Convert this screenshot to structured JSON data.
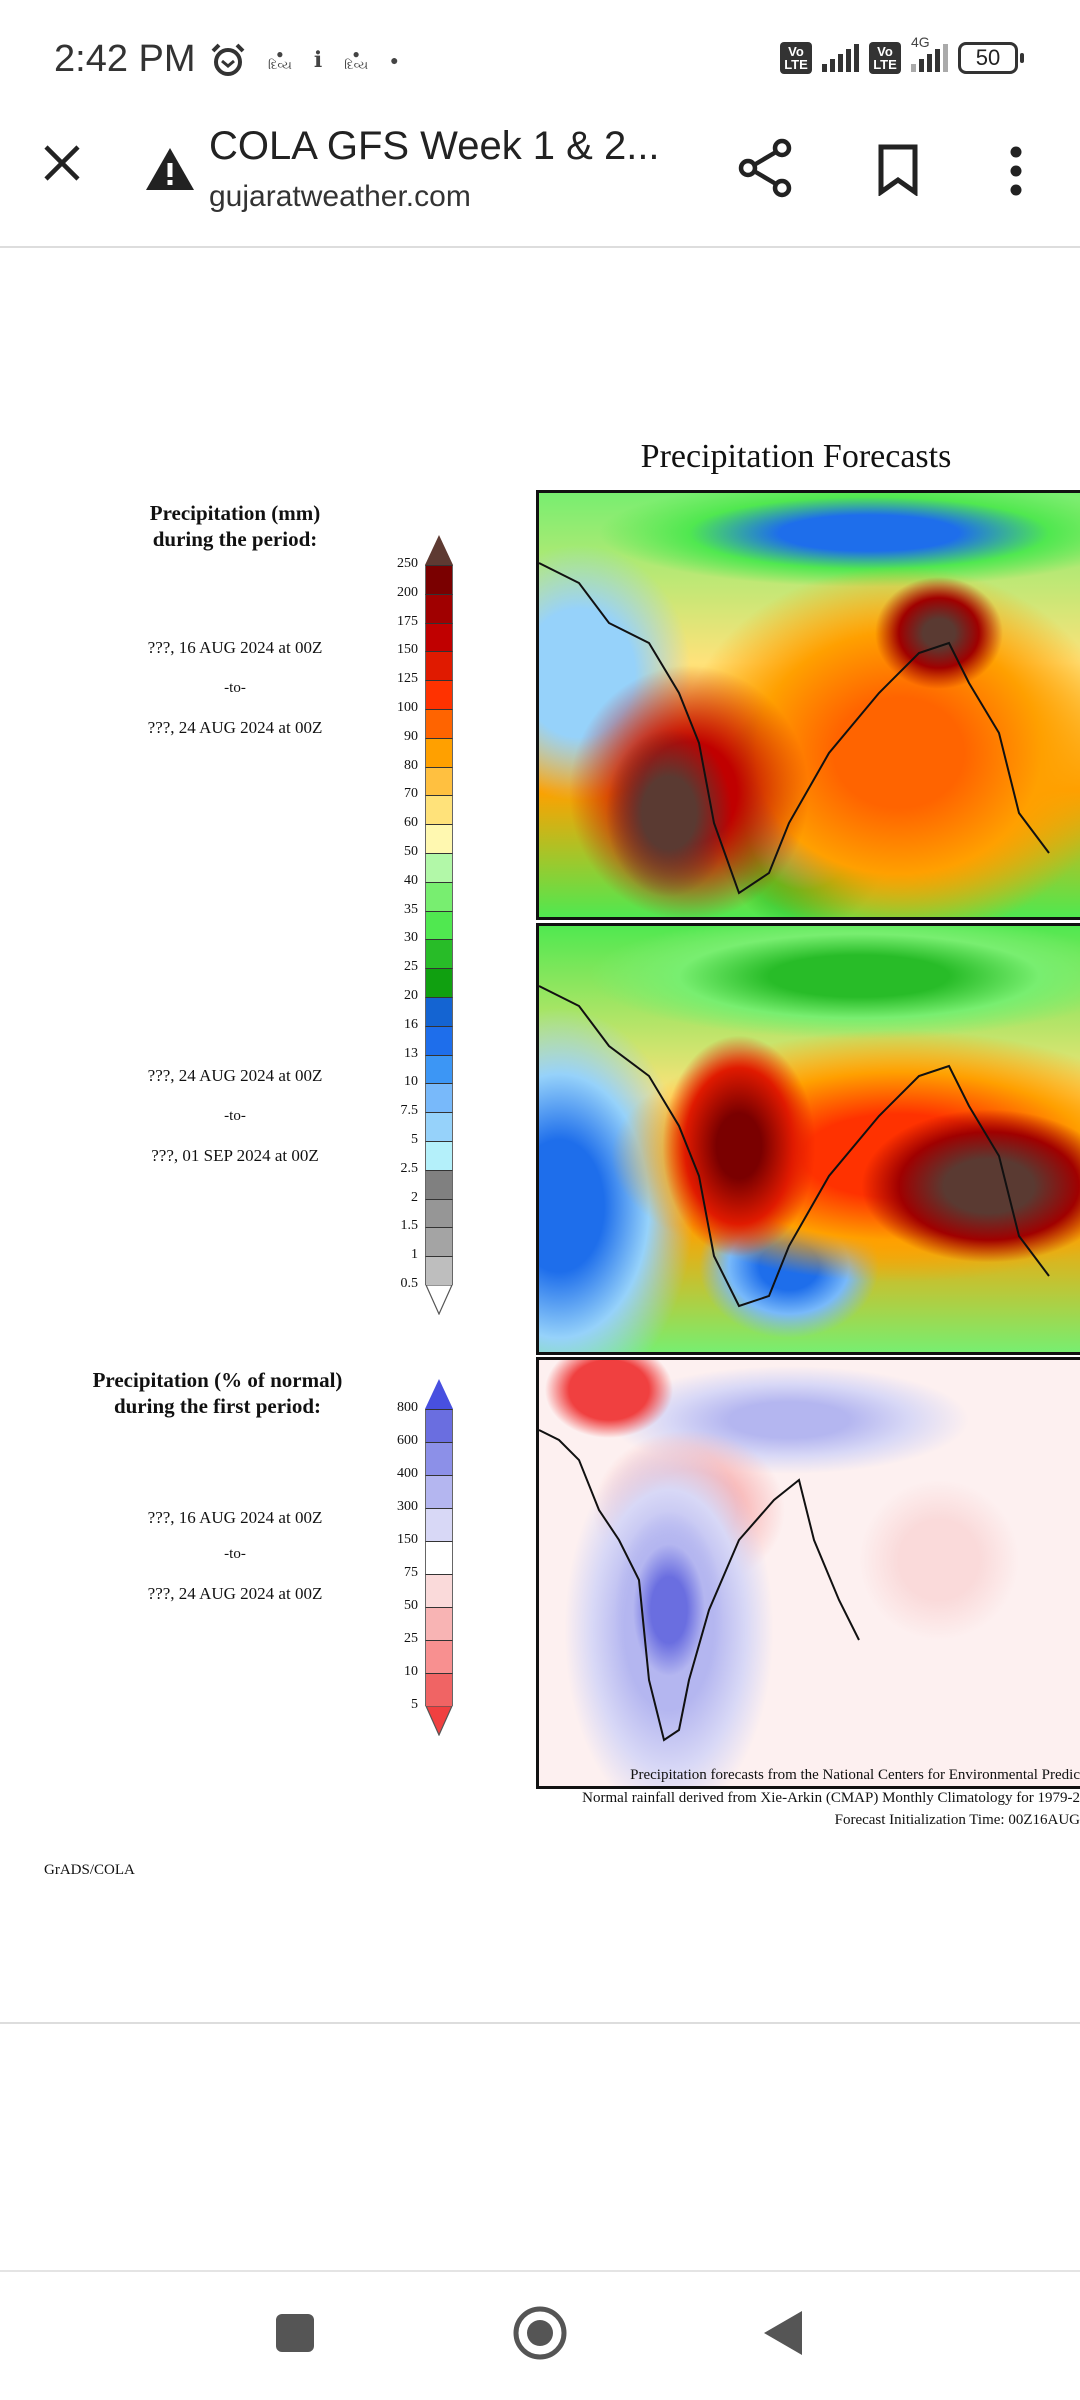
{
  "status_bar": {
    "time": "2:42 PM",
    "network_label": "4G",
    "volte_label": "Vo LTE",
    "battery": "50",
    "icons": [
      "alarm-icon",
      "divya-bhaskar-icon",
      "notification-icon",
      "divya-bhaskar-icon",
      "dot-icon"
    ]
  },
  "toolbar": {
    "title": "COLA GFS Week 1 & 2...",
    "url": "gujaratweather.com",
    "icons": [
      "close-icon",
      "warning-icon",
      "share-icon",
      "bookmark-icon",
      "more-vert-icon"
    ]
  },
  "figure": {
    "title": "Precipitation Forecasts",
    "legend1": {
      "title_line1": "Precipitation (mm)",
      "title_line2": "during the period:",
      "levels": [
        "250",
        "200",
        "175",
        "150",
        "125",
        "100",
        "90",
        "80",
        "70",
        "60",
        "50",
        "40",
        "35",
        "30",
        "25",
        "20",
        "16",
        "13",
        "10",
        "7.5",
        "5",
        "2.5",
        "2",
        "1.5",
        "1",
        "0.5"
      ],
      "colors": [
        "#7a0000",
        "#a00000",
        "#c00000",
        "#e01a00",
        "#ff3200",
        "#ff6400",
        "#ffa000",
        "#ffc040",
        "#ffe27a",
        "#fff8b0",
        "#b2f8a8",
        "#78ee70",
        "#50e850",
        "#28bc28",
        "#10a010",
        "#1464d2",
        "#1e6eeb",
        "#3c96f5",
        "#78b9fa",
        "#96d2fa",
        "#b4f0fa",
        "#808080",
        "#969696",
        "#a4a4a4",
        "#bebebe"
      ],
      "top_arrow_color": "#5e3a32",
      "bottom_arrow_color": "#ffffff"
    },
    "period1": {
      "from": "???, 16 AUG 2024 at 00Z",
      "to_label": "-to-",
      "to": "???, 24 AUG 2024 at 00Z"
    },
    "period2": {
      "from": "???, 24 AUG 2024 at 00Z",
      "to_label": "-to-",
      "to": "???, 01 SEP 2024 at 00Z"
    },
    "legend2": {
      "title_line1": "Precipitation (% of normal)",
      "title_line2": "during the first period:",
      "levels": [
        "800",
        "600",
        "400",
        "300",
        "150",
        "75",
        "50",
        "25",
        "10",
        "5"
      ],
      "colors": [
        "#6a6ee0",
        "#8c90e8",
        "#b4b6f0",
        "#d8d8f6",
        "#ffffff",
        "#fadada",
        "#f8b4b4",
        "#f89090",
        "#f06464"
      ],
      "top_arrow_color": "#4850e0",
      "bottom_arrow_color": "#f04040"
    },
    "period3": {
      "from": "???, 16 AUG 2024 at 00Z",
      "to_label": "-to-",
      "to": "???, 24 AUG 2024 at 00Z"
    },
    "footer": {
      "line1": "Precipitation forecasts from the National Centers for Environmental Predic",
      "line2": "Normal rainfall derived from Xie-Arkin (CMAP) Monthly Climatology for 1979-2",
      "line3": "Forecast Initialization Time: 00Z16AUG"
    },
    "credit": "GrADS/COLA"
  },
  "nav": {
    "icons": [
      "recents-icon",
      "home-icon",
      "back-icon"
    ]
  }
}
